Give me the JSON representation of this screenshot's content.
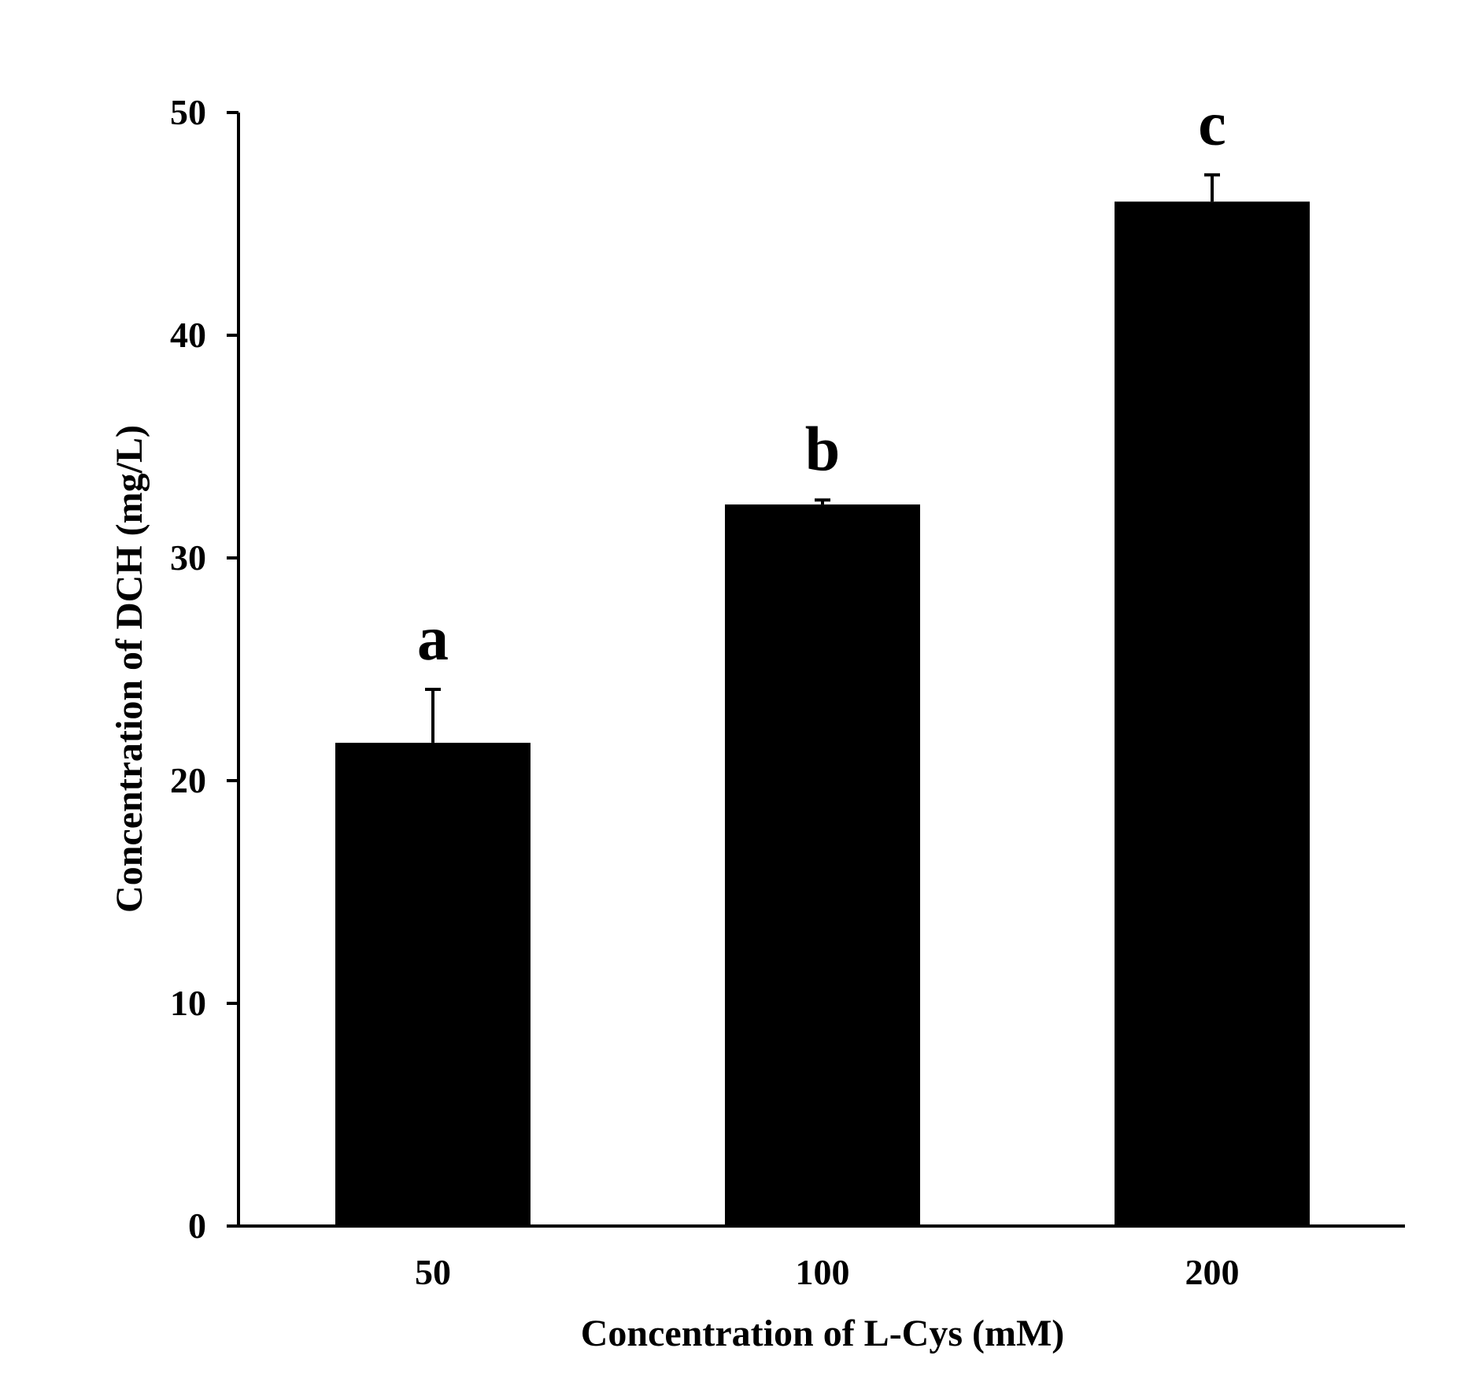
{
  "chart_data": {
    "type": "bar",
    "xlabel": "Concentration of L-Cys (mM)",
    "ylabel": "Concentration of DCH (mg/L)",
    "categories": [
      "50",
      "100",
      "200"
    ],
    "series": [
      {
        "values": [
          21.7,
          32.4,
          46.0
        ],
        "error": [
          2.4,
          0.2,
          1.2
        ],
        "significance_labels": [
          "a",
          "b",
          "c"
        ]
      }
    ],
    "ylim": [
      0,
      50
    ],
    "yticks": [
      0,
      10,
      20,
      30,
      40,
      50
    ],
    "grid": false,
    "legend": "none",
    "bar_color": "#000000"
  }
}
